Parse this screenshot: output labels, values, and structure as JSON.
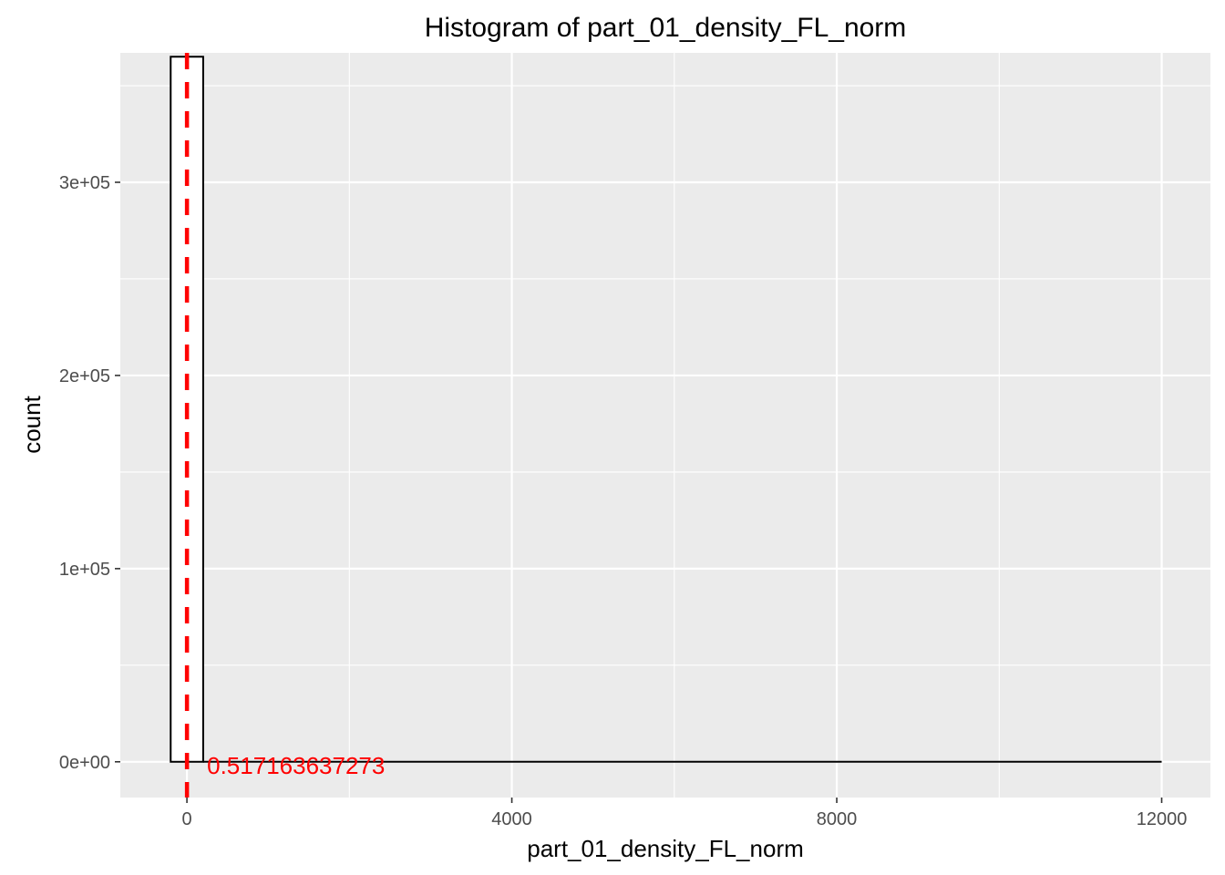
{
  "chart_data": {
    "type": "bar",
    "title": "Histogram of  part_01_density_FL_norm",
    "xlabel": "part_01_density_FL_norm",
    "ylabel": "count",
    "xlim": [
      -820,
      12600
    ],
    "ylim": [
      -18500,
      367000
    ],
    "x_ticks": [
      0,
      4000,
      8000,
      12000
    ],
    "x_tick_labels": [
      "0",
      "4000",
      "8000",
      "12000"
    ],
    "y_ticks": [
      0,
      100000,
      200000,
      300000
    ],
    "y_tick_labels": [
      "0e+00",
      "1e+05",
      "2e+05",
      "3e+05"
    ],
    "bin_width": 400,
    "bins": [
      {
        "x0": -200,
        "x1": 200,
        "count": 365000
      },
      {
        "x0": 200,
        "x1": 12000,
        "count": 0
      }
    ],
    "vline": {
      "x": 0.517163637273,
      "color": "#ff0000",
      "style": "dashed"
    },
    "annotation": {
      "text": "0.517163637273",
      "x": 0.517163637273,
      "y": 0,
      "color": "#ff0000"
    },
    "grid": true,
    "legend": "none",
    "colors": {
      "panel": "#ebebeb",
      "grid": "#ffffff",
      "bar_fill": "#ffffff",
      "bar_outline": "#000000",
      "mean_line": "#ff0000"
    }
  }
}
